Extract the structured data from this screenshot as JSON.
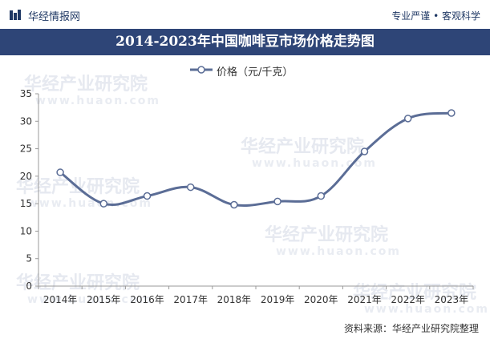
{
  "header": {
    "brand_name": "华经情报网",
    "slogan": "专业严谨 • 客观科学"
  },
  "title": "2014-2023年中国咖啡豆市场价格走势图",
  "watermarks": [
    "华经产业研究院",
    "www.huaon.com"
  ],
  "colors": {
    "title_bar": "#2e4577",
    "line": "#5b6d96",
    "axis": "#999999"
  },
  "chart_data": {
    "type": "line",
    "categories": [
      "2014年",
      "2015年",
      "2016年",
      "2017年",
      "2018年",
      "2019年",
      "2020年",
      "2021年",
      "2022年",
      "2023年"
    ],
    "series": [
      {
        "name": "价格（元/千克）",
        "values": [
          20.7,
          15.0,
          16.4,
          18.0,
          14.8,
          15.4,
          16.4,
          24.5,
          30.5,
          31.5
        ]
      }
    ],
    "ylim": [
      0,
      35
    ],
    "yticks": [
      0,
      5,
      10,
      15,
      20,
      25,
      30,
      35
    ],
    "grid": false,
    "legend_position": "top-center"
  },
  "source": "资料来源：华经产业研究院整理"
}
